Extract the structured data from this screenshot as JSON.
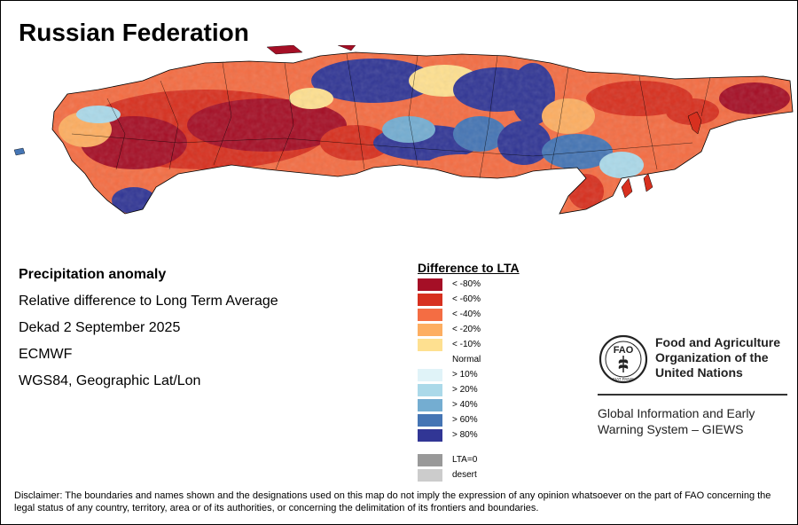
{
  "title": "Russian Federation",
  "info": {
    "heading": "Precipitation anomaly",
    "lines": [
      "Relative difference to Long Term Average",
      "Dekad 2 September 2025",
      "ECMWF",
      "WGS84, Geographic Lat/Lon"
    ]
  },
  "legend": {
    "title": "Difference to LTA",
    "items": [
      {
        "label": "< -80%",
        "color": "#a50f26"
      },
      {
        "label": "< -60%",
        "color": "#d7301f"
      },
      {
        "label": "< -40%",
        "color": "#f46d43"
      },
      {
        "label": "< -20%",
        "color": "#fdae61"
      },
      {
        "label": "< -10%",
        "color": "#fee090"
      },
      {
        "label": "Normal",
        "color": "#ffffff"
      },
      {
        "label": "> 10%",
        "color": "#e0f3f8"
      },
      {
        "label": "> 20%",
        "color": "#abd9e9"
      },
      {
        "label": "> 40%",
        "color": "#74add1"
      },
      {
        "label": "> 60%",
        "color": "#4575b4"
      },
      {
        "label": "> 80%",
        "color": "#313695"
      }
    ],
    "extras": [
      {
        "label": "LTA=0",
        "color": "#999999"
      },
      {
        "label": "desert",
        "color": "#cccccc"
      }
    ]
  },
  "fao": {
    "logo_text": "FAO",
    "logo_motto": "FIAT PANIS",
    "name_lines": [
      "Food and Agriculture",
      "Organization of the",
      "United Nations"
    ],
    "system_lines": [
      "Global Information and Early",
      "Warning System – GIEWS"
    ]
  },
  "disclaimer": "Disclaimer: The boundaries and names shown and the designations used on this map do not imply the expression of any opinion whatsoever on the part of FAO concerning the legal status of any country, territory, area or of its authorities, or concerning the delimitation of its frontiers and boundaries."
}
